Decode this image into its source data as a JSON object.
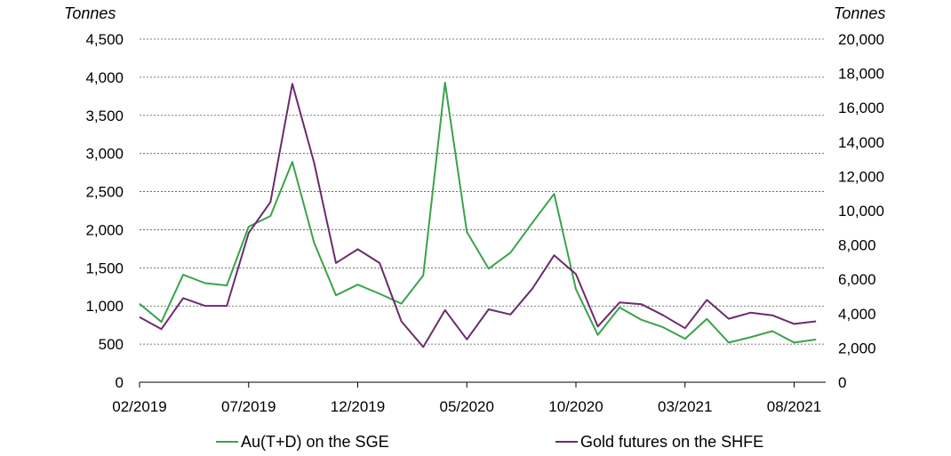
{
  "chart_data": {
    "type": "line",
    "left_unit": "Tonnes",
    "right_unit": "Tonnes",
    "x": [
      "02/2019",
      "03/2019",
      "04/2019",
      "05/2019",
      "06/2019",
      "07/2019",
      "08/2019",
      "09/2019",
      "10/2019",
      "11/2019",
      "12/2019",
      "01/2020",
      "02/2020",
      "03/2020",
      "04/2020",
      "05/2020",
      "06/2020",
      "07/2020",
      "08/2020",
      "09/2020",
      "10/2020",
      "11/2020",
      "12/2020",
      "01/2021",
      "02/2021",
      "03/2021",
      "04/2021",
      "05/2021",
      "06/2021",
      "07/2021",
      "08/2021",
      "09/2021"
    ],
    "x_tick_labels": [
      "02/2019",
      "07/2019",
      "12/2019",
      "05/2020",
      "10/2020",
      "03/2021",
      "08/2021"
    ],
    "left_axis": {
      "ylim": [
        0,
        4500
      ],
      "ticks": [
        "0",
        "500",
        "1,000",
        "1,500",
        "2,000",
        "2,500",
        "3,000",
        "3,500",
        "4,000",
        "4,500"
      ]
    },
    "right_axis": {
      "ylim": [
        0,
        20000
      ],
      "ticks": [
        "0",
        "2,000",
        "4,000",
        "6,000",
        "8,000",
        "10,000",
        "12,000",
        "14,000",
        "16,000",
        "18,000",
        "20,000"
      ]
    },
    "grid": "horizontal dashed",
    "legend_position": "bottom",
    "series": [
      {
        "name": "Au(T+D) on the SGE",
        "axis": "left",
        "color": "#3aa34a",
        "values": [
          1030,
          790,
          1410,
          1300,
          1270,
          2040,
          2180,
          2890,
          1830,
          1140,
          1280,
          1160,
          1030,
          1400,
          3930,
          1970,
          1490,
          1700,
          2090,
          2470,
          1220,
          620,
          980,
          820,
          720,
          570,
          830,
          520,
          590,
          670,
          520,
          560
        ]
      },
      {
        "name": "Gold futures on the SHFE",
        "axis": "right",
        "color": "#6b2c6b",
        "values": [
          3800,
          3100,
          4900,
          4450,
          4450,
          8700,
          10500,
          17400,
          12800,
          6950,
          7750,
          6950,
          3550,
          2050,
          4200,
          2500,
          4250,
          3950,
          5450,
          7400,
          6300,
          3250,
          4650,
          4550,
          3900,
          3150,
          4800,
          3700,
          4050,
          3900,
          3400,
          3550
        ]
      }
    ]
  }
}
